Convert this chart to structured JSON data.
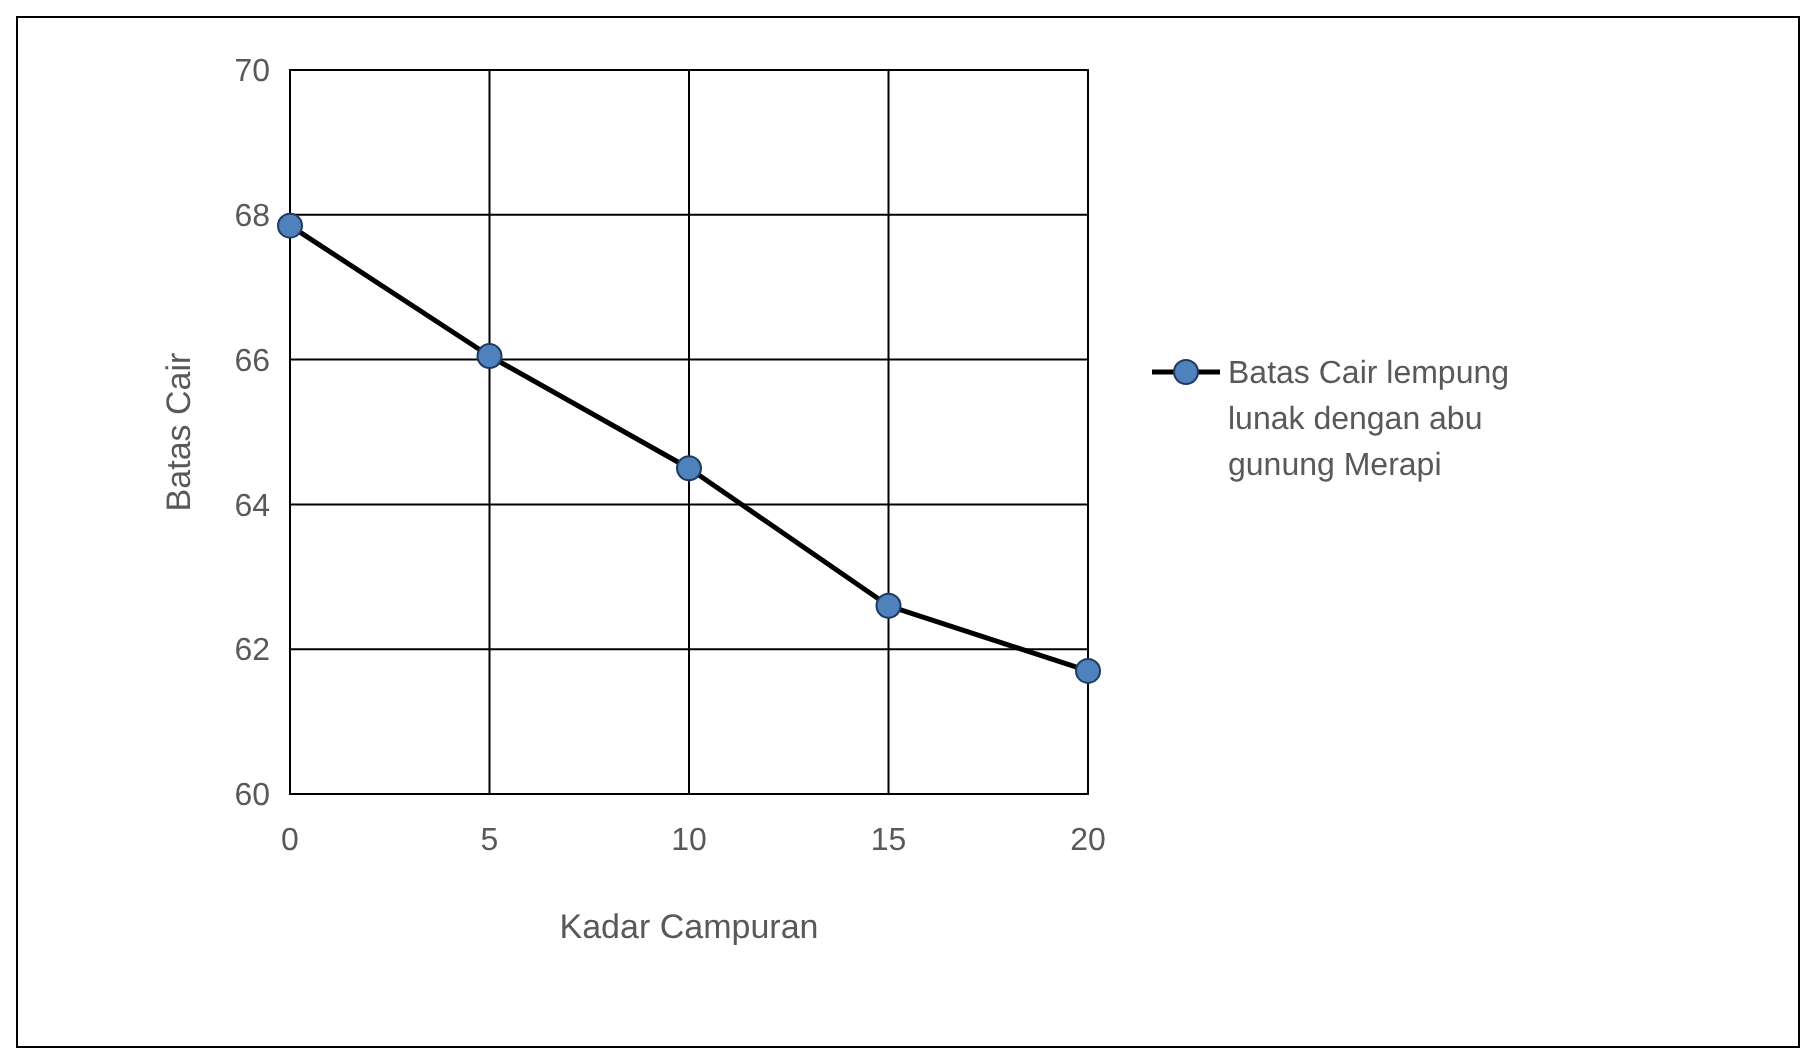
{
  "chart_data": {
    "type": "line",
    "xlabel": "Kadar Campuran",
    "ylabel": "Batas Cair",
    "x": [
      0,
      5,
      10,
      15,
      20
    ],
    "series": [
      {
        "name": "Batas Cair lempung lunak dengan abu gunung Merapi",
        "color": "#000000",
        "values": [
          67.85,
          66.05,
          64.5,
          62.6,
          61.7
        ]
      }
    ],
    "xlim": [
      0,
      20
    ],
    "xticks": [
      0,
      5,
      10,
      15,
      20
    ],
    "ylim": [
      60,
      70
    ],
    "yticks": [
      60,
      62,
      64,
      66,
      68,
      70
    ],
    "grid": true,
    "legend": "right",
    "marker": "circle",
    "line_style": "solid"
  }
}
